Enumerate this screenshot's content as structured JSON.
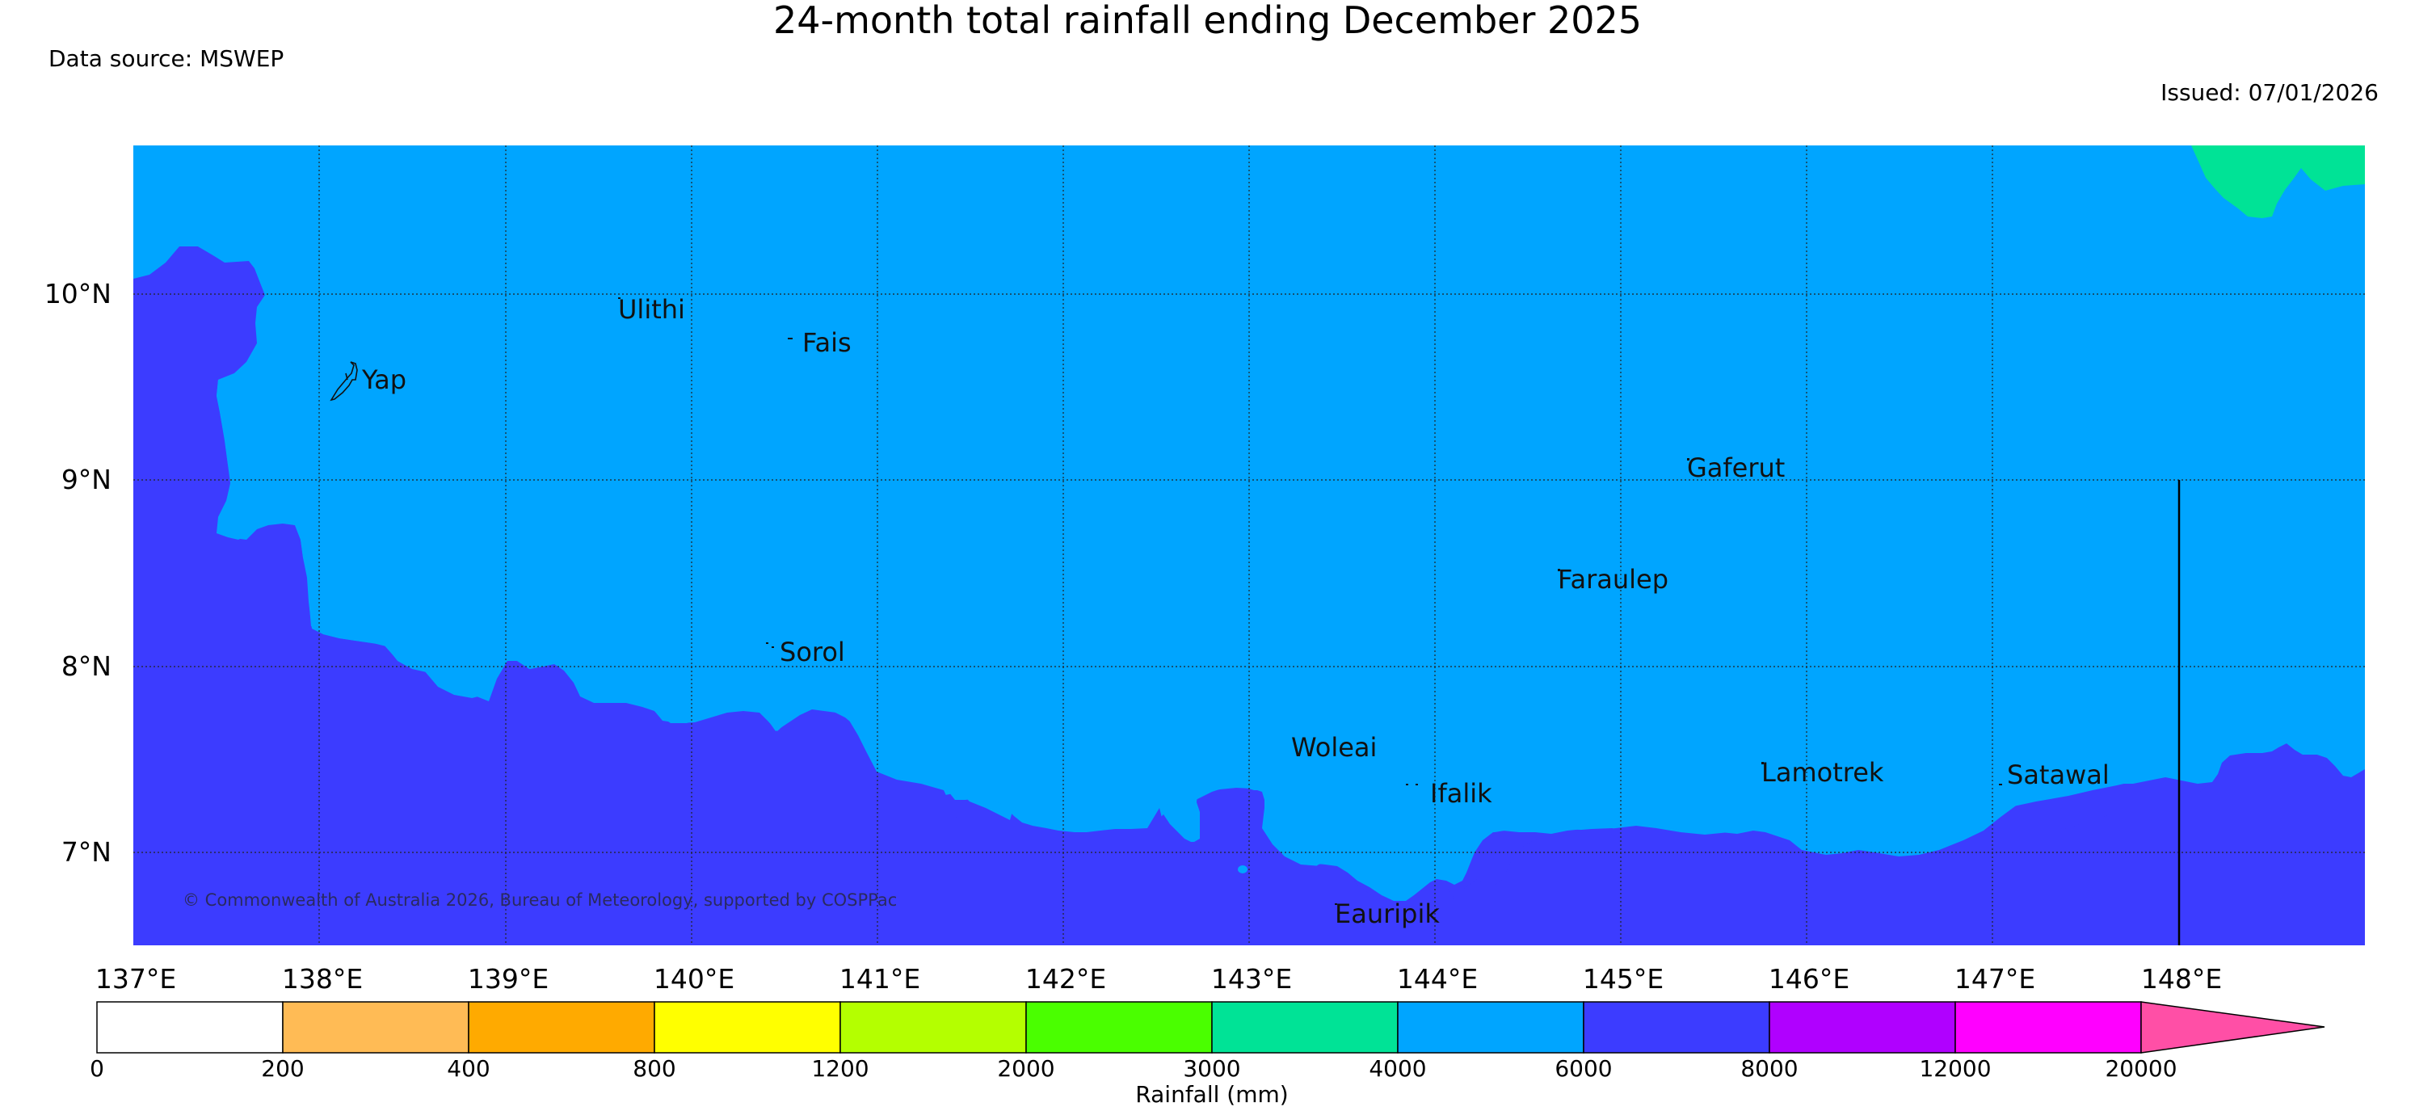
{
  "header": {
    "title": "24-month total rainfall ending December 2025",
    "source": "Data source: MSWEP",
    "issued": "Issued: 07/01/2026"
  },
  "map": {
    "lon_labels": [
      "137°E",
      "138°E",
      "139°E",
      "140°E",
      "141°E",
      "142°E",
      "143°E",
      "144°E",
      "145°E",
      "146°E",
      "147°E",
      "148°E"
    ],
    "lat_labels": [
      "10°N",
      "9°N",
      "8°N",
      "7°N"
    ],
    "places": [
      {
        "name": "Ulithi"
      },
      {
        "name": "Fais"
      },
      {
        "name": "Yap"
      },
      {
        "name": "Gaferut"
      },
      {
        "name": "Faraulep"
      },
      {
        "name": "Sorol"
      },
      {
        "name": "Woleai"
      },
      {
        "name": "Ifalik"
      },
      {
        "name": "Lamotrek"
      },
      {
        "name": "Satawal"
      },
      {
        "name": "Eauripik"
      }
    ],
    "copyright": "© Commonwealth of Australia 2026, Bureau of Meteorology, supported by COSPPac",
    "colors": {
      "band_4000_6000": "#00a5ff",
      "band_6000_8000": "#3c3cff",
      "band_3000_4000": "#00e396"
    }
  },
  "legend": {
    "title": "Rainfall (mm)",
    "bins": [
      {
        "color": "#ffffff"
      },
      {
        "color": "#ffbb55"
      },
      {
        "color": "#ffaa00"
      },
      {
        "color": "#ffff00"
      },
      {
        "color": "#b4ff00"
      },
      {
        "color": "#4aff00"
      },
      {
        "color": "#00e396"
      },
      {
        "color": "#00a5ff"
      },
      {
        "color": "#3c3cff"
      },
      {
        "color": "#b000ff"
      },
      {
        "color": "#ff00ff"
      },
      {
        "color": "#ff4fa6"
      }
    ],
    "ticks": [
      "0",
      "200",
      "400",
      "800",
      "1200",
      "2000",
      "3000",
      "4000",
      "6000",
      "8000",
      "12000",
      "20000"
    ]
  }
}
